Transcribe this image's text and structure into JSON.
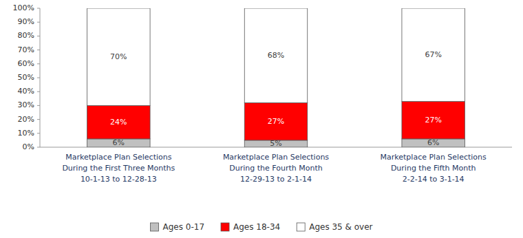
{
  "chart_data": {
    "type": "bar",
    "stacked": true,
    "data_labels": true,
    "grid": false,
    "legend": "bottom",
    "categories": [
      "Marketplace Plan Selections\nDuring the First Three Months\n10-1-13 to 12-28-13",
      "Marketplace Plan Selections\nDuring the Fourth Month\n12-29-13 to 2-1-14",
      "Marketplace Plan Selections\nDuring the Fifth Month\n2-2-14 to 3-1-14"
    ],
    "series": [
      {
        "name": "Ages 0-17",
        "color": "#c0c0c0",
        "values": [
          6,
          5,
          6
        ],
        "value_labels": [
          "6%",
          "5%",
          "6%"
        ]
      },
      {
        "name": "Ages 18-34",
        "color": "#ff0000",
        "values": [
          24,
          27,
          27
        ],
        "value_labels": [
          "24%",
          "27%",
          "27%"
        ]
      },
      {
        "name": "Ages 35 & over",
        "color": "#ffffff",
        "values": [
          70,
          68,
          67
        ],
        "value_labels": [
          "70%",
          "68%",
          "67%"
        ]
      }
    ],
    "ylim": [
      0,
      100
    ],
    "yticks": [
      {
        "value": 0,
        "label": "0%"
      },
      {
        "value": 10,
        "label": "10%"
      },
      {
        "value": 20,
        "label": "20%"
      },
      {
        "value": 30,
        "label": "30%"
      },
      {
        "value": 40,
        "label": "40%"
      },
      {
        "value": 50,
        "label": "50%"
      },
      {
        "value": 60,
        "label": "60%"
      },
      {
        "value": 70,
        "label": "70%"
      },
      {
        "value": 80,
        "label": "80%"
      },
      {
        "value": 90,
        "label": "90%"
      },
      {
        "value": 100,
        "label": "100%"
      }
    ]
  }
}
